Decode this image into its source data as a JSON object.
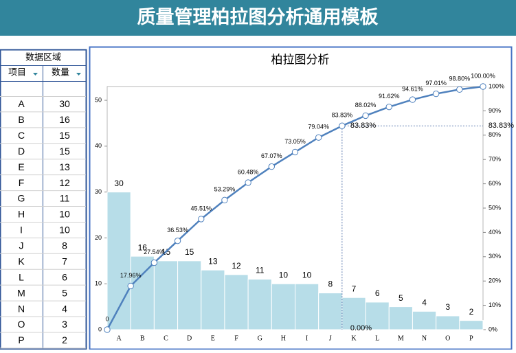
{
  "header": {
    "title": "质量管理柏拉图分析通用模板"
  },
  "table": {
    "caption": "数据区域",
    "columns": [
      "项目",
      "数量"
    ],
    "rows": [
      [
        "A",
        30
      ],
      [
        "B",
        16
      ],
      [
        "C",
        15
      ],
      [
        "D",
        15
      ],
      [
        "E",
        13
      ],
      [
        "F",
        12
      ],
      [
        "G",
        11
      ],
      [
        "H",
        10
      ],
      [
        "I",
        10
      ],
      [
        "J",
        8
      ],
      [
        "K",
        7
      ],
      [
        "L",
        6
      ],
      [
        "M",
        5
      ],
      [
        "N",
        4
      ],
      [
        "O",
        3
      ],
      [
        "P",
        2
      ]
    ]
  },
  "chart_data": {
    "type": "pareto",
    "title": "柏拉图分析",
    "categories": [
      "A",
      "B",
      "C",
      "D",
      "E",
      "F",
      "G",
      "H",
      "I",
      "J",
      "K",
      "L",
      "M",
      "N",
      "O",
      "P"
    ],
    "values": [
      30,
      16,
      15,
      15,
      13,
      12,
      11,
      10,
      10,
      8,
      7,
      6,
      5,
      4,
      3,
      2
    ],
    "color": "#b7dde8",
    "ylim": [
      0,
      53
    ],
    "yticks": [
      0,
      10,
      20,
      30,
      40,
      50
    ],
    "y2lim": [
      0,
      100
    ],
    "y2ticks": [
      {
        "value": 0,
        "label": "0%"
      },
      {
        "value": 10,
        "label": "10%"
      },
      {
        "value": 20,
        "label": "20%"
      },
      {
        "value": 30,
        "label": "30%"
      },
      {
        "value": 40,
        "label": "40%"
      },
      {
        "value": 50,
        "label": "50%"
      },
      {
        "value": 60,
        "label": "60%"
      },
      {
        "value": 70,
        "label": "70%"
      },
      {
        "value": 80,
        "label": "80%"
      },
      {
        "value": 90,
        "label": "90%"
      },
      {
        "value": 100,
        "label": "100%"
      }
    ],
    "cumulative": {
      "axis": "y2",
      "color": "#4f81bd",
      "values": [
        0,
        17.96,
        27.54,
        36.53,
        45.51,
        53.29,
        60.48,
        67.07,
        73.05,
        79.04,
        83.83,
        88.02,
        91.62,
        94.61,
        97.01,
        98.8,
        100
      ],
      "value_labels": [
        "0",
        "17.96%",
        "27.54%",
        "36.53%",
        "45.51%",
        "53.29%",
        "60.48%",
        "67.07%",
        "73.05%",
        "79.04%",
        "83.83%",
        "88.02%",
        "91.62%",
        "94.61%",
        "97.01%",
        "98.80%",
        "100.00%"
      ]
    },
    "threshold": {
      "axis": "y2",
      "values": [
        83.83,
        0
      ],
      "value_labels": [
        "83.83%",
        "0.00%"
      ]
    }
  }
}
